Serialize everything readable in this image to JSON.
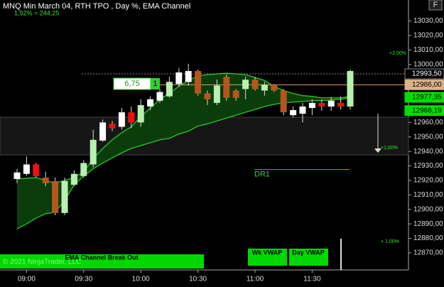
{
  "chart_data": {
    "type": "candlestick",
    "title": "MNQ Min March 04, RTH TPO , Day %, EMA Channel",
    "subtitle": "1,92% = 244,25",
    "categories": [
      null,
      "09:00",
      null,
      null,
      null,
      null,
      null,
      "09:30",
      null,
      null,
      null,
      null,
      null,
      "10:00",
      null,
      null,
      null,
      null,
      null,
      "10:30",
      null,
      null,
      null,
      null,
      null,
      "11:00",
      null,
      null,
      null,
      null,
      null,
      "11:30",
      null,
      null,
      null,
      null
    ],
    "open": [
      12921,
      12924.5,
      12931,
      12922,
      12919.5,
      12897.5,
      12917,
      12923,
      12931,
      12947.5,
      12959,
      12957,
      12967,
      12960,
      12971,
      12975,
      12978,
      12986.5,
      12988,
      12995.5,
      12980,
      12973.5,
      12991.5,
      12982,
      12983,
      12989.5,
      12982,
      12986,
      12982,
      12965,
      12966,
      12970,
      12973.5,
      12971,
      12973.5,
      12971
    ],
    "high": [
      12928,
      12936.5,
      12932,
      12926,
      12922,
      12922,
      12927,
      12934,
      12955,
      12962,
      12961,
      12970,
      12971,
      12976,
      12978,
      12983,
      12991.5,
      12997.5,
      13000.5,
      12996.5,
      12982,
      12989.5,
      12993,
      12983,
      12991.5,
      12991.5,
      12988,
      12986.5,
      12983,
      12971,
      12973.5,
      12976,
      12976,
      12977.5,
      12978,
      12996.5
    ],
    "low": [
      12918,
      12923,
      12922,
      12916,
      12896,
      12896,
      12916,
      12922,
      12929,
      12946.5,
      12954,
      12955,
      12956,
      12957,
      12968.5,
      12973.5,
      12977,
      12984.5,
      12985.5,
      12978.5,
      12972,
      12972,
      12975,
      12975,
      12976,
      12982,
      12978.5,
      12981,
      12965,
      12963.5,
      12960,
      12965,
      12968,
      12968,
      12969,
      12969
    ],
    "close": [
      12925.5,
      12931,
      12923,
      12918,
      12897.5,
      12919.5,
      12924.5,
      12932,
      12948,
      12960,
      12956,
      12967,
      12960,
      12972,
      12976,
      12981,
      12988,
      12994.5,
      12995.5,
      12980,
      12976,
      12985.5,
      12977,
      12977,
      12989.5,
      12983,
      12986,
      12982,
      12967,
      12968.5,
      12971,
      12973.5,
      12971,
      12975,
      12971,
      12995.5
    ],
    "up_color": "#ffffff",
    "down_color": "#ee1111",
    "channel_up_color": "#b8f0b0",
    "channel_down_color": "#b5561c",
    "channel": {
      "color": "#2fd12f",
      "fill": "#0b3d0b",
      "upper": [
        12921,
        12921.5,
        12922,
        12920,
        12918,
        12920,
        12922,
        12926,
        12935,
        12942,
        12948,
        12953,
        12957,
        12964,
        12970,
        12976,
        12980,
        12985,
        12989,
        12992,
        12993,
        12993.5,
        12994,
        12993.5,
        12993,
        12991,
        12989,
        12985,
        12982,
        12980,
        12978.5,
        12978,
        12977,
        12977,
        12977,
        12978
      ],
      "lower": [
        12886.5,
        12890,
        12894,
        12897,
        12898,
        12906,
        12917,
        12923,
        12928,
        12932,
        12935.5,
        12939,
        12942,
        12944,
        12946,
        12948,
        12949,
        12952,
        12954,
        12957.5,
        12959,
        12961,
        12963,
        12965,
        12967,
        12969,
        12971,
        12972.5,
        12973.5,
        12974,
        12974.5,
        12975,
        12975,
        12975.5,
        12976,
        12977
      ]
    },
    "ylim": [
      12858.2,
      13044.5
    ],
    "yticks": [
      {
        "value": 12870,
        "label": "12870,00"
      },
      {
        "value": 12880,
        "label": "12880,00"
      },
      {
        "value": 12890,
        "label": "12890,00"
      },
      {
        "value": 12900,
        "label": "12900,00"
      },
      {
        "value": 12910,
        "label": "12910,00"
      },
      {
        "value": 12920,
        "label": "12920,00"
      },
      {
        "value": 12930,
        "label": "12930,00"
      },
      {
        "value": 12940,
        "label": "12940,00"
      },
      {
        "value": 12950,
        "label": "12950,00"
      },
      {
        "value": 12960,
        "label": "12960,00"
      },
      {
        "value": 13000,
        "label": "13000,00"
      },
      {
        "value": 13010,
        "label": "13010,00"
      },
      {
        "value": 13020,
        "label": "13020,00"
      },
      {
        "value": 13030,
        "label": "13030,00"
      }
    ],
    "price_markers": [
      {
        "value": 12993.5,
        "label": "12993,50",
        "color": "#888888",
        "text_color": "#ffffff",
        "background": "#000000"
      },
      {
        "value": 12986,
        "label": "12986,00",
        "color": "#d8a070",
        "text_color": "#000000",
        "background": "#d8b48c"
      },
      {
        "value": 12977.35,
        "label": "12977,35",
        "color": "#00e000",
        "text_color": "#000000",
        "background": "#00e000"
      },
      {
        "value": 12968.19,
        "label": "12968,19",
        "color": "#00e000",
        "text_color": "#000000",
        "background": "#00e000"
      }
    ],
    "zone": [
      12937.6,
      12963.6
    ],
    "level": {
      "label": "DR1",
      "value": 12927.5,
      "color": "#2fd12f"
    },
    "percent_labels": [
      "+2.00%",
      "+1,50%",
      "+ 1,00%"
    ],
    "box": {
      "text": "6,75",
      "count": "1"
    },
    "copyright": "© 2021 NinjaTrader, LLC",
    "buttons": [
      "EMA Channel Break Out",
      "Wk VWAP",
      "Day VWAP"
    ],
    "corner": "F"
  }
}
